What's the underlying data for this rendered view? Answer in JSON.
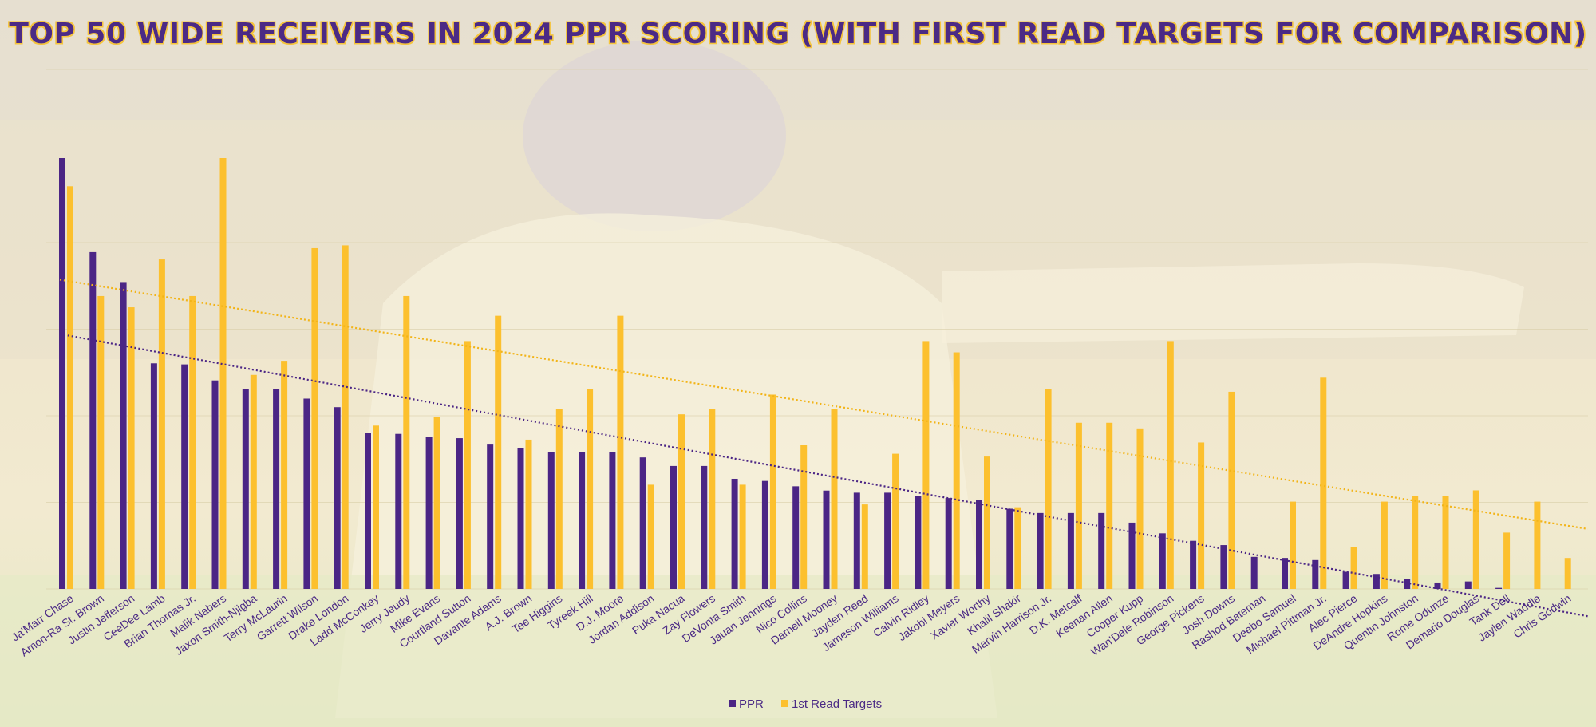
{
  "chart_data": {
    "type": "bar",
    "title": "TOP 50 WIDE RECEIVERS IN 2024 PPR SCORING (WITH FIRST READ TARGETS FOR COMPARISON)",
    "xlabel": "",
    "ylabel": "",
    "legend_position": "bottom",
    "gridlines": true,
    "categories": [
      "Ja'Marr Chase",
      "Amon-Ra St. Brown",
      "Justin Jefferson",
      "CeeDee Lamb",
      "Brian Thomas Jr.",
      "Malik Nabers",
      "Jaxon Smith-Njigba",
      "Terry McLaurin",
      "Garrett Wilson",
      "Drake London",
      "Ladd McConkey",
      "Jerry Jeudy",
      "Mike Evans",
      "Courtland Sutton",
      "Davante Adams",
      "A.J. Brown",
      "Tee Higgins",
      "Tyreek Hill",
      "D.J. Moore",
      "Jordan Addison",
      "Puka Nacua",
      "Zay Flowers",
      "DeVonta Smith",
      "Jauan Jennings",
      "Nico Collins",
      "Darnell Mooney",
      "Jayden Reed",
      "Jameson Williams",
      "Calvin Ridley",
      "Jakobi Meyers",
      "Xavier Worthy",
      "Khalil Shakir",
      "Marvin Harrison Jr.",
      "D.K. Metcalf",
      "Keenan Allen",
      "Cooper Kupp",
      "Wan'Dale Robinson",
      "George Pickens",
      "Josh Downs",
      "Rashod Bateman",
      "Deebo Samuel",
      "Michael Pittman Jr.",
      "Alec Pierce",
      "DeAndre Hopkins",
      "Quentin Johnston",
      "Rome Odunze",
      "Demario Douglas",
      "Tank Dell",
      "Jaylen Waddle",
      "Chris Godwin"
    ],
    "series": [
      {
        "name": "PPR",
        "color": "#4b2585",
        "values": [
          403,
          315,
          287,
          211,
          210,
          195,
          187,
          187,
          178,
          170,
          146,
          145,
          142,
          141,
          135,
          132,
          128,
          128,
          128,
          123,
          115,
          115,
          103,
          101,
          96,
          92,
          90,
          90,
          87,
          85,
          83,
          75,
          71,
          71,
          71,
          62,
          52,
          45,
          41,
          30,
          29,
          27,
          16,
          14,
          9,
          6,
          7,
          1,
          0,
          0
        ]
      },
      {
        "name": "1st Read Targets",
        "color": "#fcc02e",
        "values": [
          143,
          104,
          100,
          117,
          104,
          153,
          76,
          81,
          121,
          122,
          58,
          104,
          61,
          88,
          97,
          53,
          64,
          71,
          97,
          37,
          62,
          64,
          37,
          69,
          51,
          64,
          30,
          48,
          88,
          84,
          47,
          29,
          71,
          59,
          59,
          57,
          88,
          52,
          70,
          0,
          31,
          75,
          15,
          31,
          33,
          33,
          35,
          20,
          31,
          11
        ]
      }
    ],
    "trendlines": [
      {
        "series": "PPR",
        "style": "dotted",
        "color": "#4b2585"
      },
      {
        "series": "1st Read Targets",
        "style": "dotted",
        "color": "#f2b418"
      }
    ]
  }
}
